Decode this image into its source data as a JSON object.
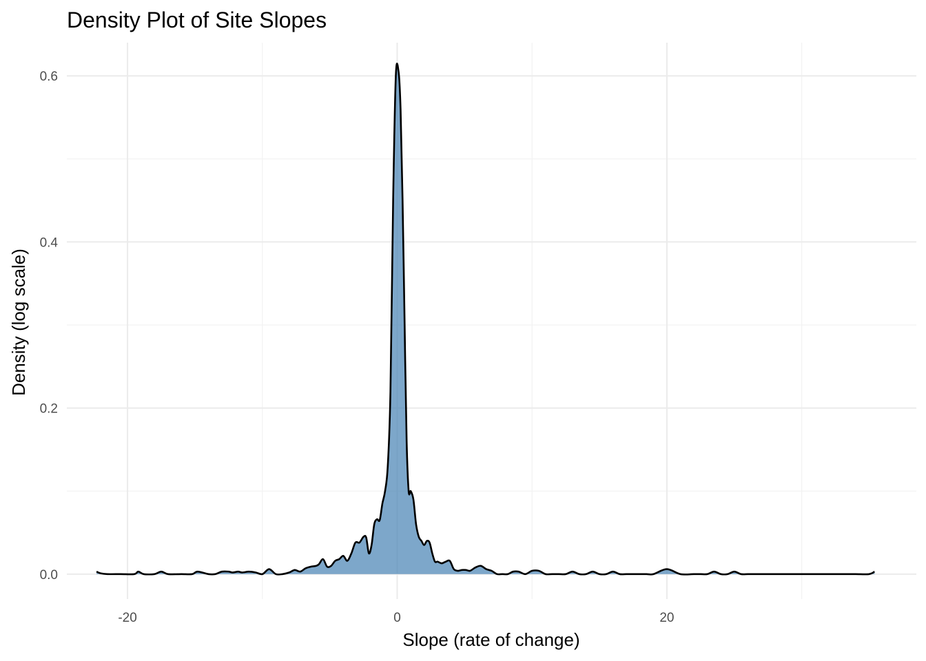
{
  "chart_data": {
    "type": "area",
    "title": "Density Plot of Site Slopes",
    "xlabel": "Slope (rate of change)",
    "ylabel": "Density (log scale)",
    "xlim": [
      -24.5,
      38.5
    ],
    "ylim": [
      -0.03,
      0.64
    ],
    "x_ticks": [
      -20,
      0,
      20
    ],
    "x_tick_labels": [
      "-20",
      "0",
      "20"
    ],
    "y_ticks": [
      0.0,
      0.2,
      0.4,
      0.6
    ],
    "y_tick_labels": [
      "0.0",
      "0.2",
      "0.4",
      "0.6"
    ],
    "grid": true,
    "fill_color": "#4682b4",
    "fill_opacity": 0.7,
    "line_color": "#000000",
    "series": [
      {
        "x": [
          -22.3,
          -22.0,
          -21.5,
          -20.5,
          -19.5,
          -19.2,
          -18.8,
          -18.0,
          -17.5,
          -17.0,
          -16.0,
          -15.2,
          -14.8,
          -14.0,
          -13.5,
          -13.0,
          -12.5,
          -12.2,
          -11.8,
          -11.5,
          -11.0,
          -10.5,
          -10.0,
          -9.5,
          -9.0,
          -8.5,
          -8.0,
          -7.6,
          -7.2,
          -6.8,
          -6.4,
          -6.0,
          -5.8,
          -5.5,
          -5.2,
          -4.9,
          -4.6,
          -4.3,
          -4.0,
          -3.7,
          -3.4,
          -3.1,
          -2.8,
          -2.5,
          -2.3,
          -2.1,
          -1.9,
          -1.7,
          -1.5,
          -1.3,
          -1.1,
          -0.9,
          -0.7,
          -0.5,
          -0.3,
          -0.1,
          0.1,
          0.25,
          0.4,
          0.55,
          0.7,
          0.85,
          1.0,
          1.2,
          1.4,
          1.6,
          1.8,
          2.0,
          2.2,
          2.4,
          2.6,
          2.8,
          3.0,
          3.3,
          3.6,
          3.9,
          4.2,
          4.5,
          4.8,
          5.1,
          5.4,
          5.8,
          6.2,
          6.6,
          7.0,
          7.4,
          7.8,
          8.2,
          8.6,
          9.0,
          9.5,
          10.0,
          10.5,
          11.0,
          11.5,
          12.0,
          12.5,
          13.0,
          13.5,
          14.0,
          14.5,
          15.0,
          15.5,
          16.0,
          16.5,
          17.0,
          17.5,
          18.0,
          18.5,
          19.0,
          20.0,
          21.0,
          22.0,
          22.5,
          23.0,
          23.5,
          24.0,
          24.5,
          25.0,
          25.5,
          26.0,
          26.5,
          27.0,
          27.5,
          28.0,
          29.0,
          30.0,
          31.0,
          32.0,
          33.0,
          34.0,
          35.0,
          35.4
        ],
        "values": [
          0.003,
          0.001,
          0.0,
          0.0,
          0.0,
          0.003,
          0.0,
          0.0,
          0.003,
          0.0,
          0.0,
          0.0,
          0.003,
          0.0,
          0.0,
          0.003,
          0.003,
          0.002,
          0.003,
          0.002,
          0.003,
          0.002,
          0.0,
          0.006,
          0.0,
          0.0,
          0.002,
          0.005,
          0.003,
          0.007,
          0.009,
          0.01,
          0.012,
          0.018,
          0.009,
          0.01,
          0.016,
          0.018,
          0.022,
          0.016,
          0.025,
          0.038,
          0.038,
          0.045,
          0.044,
          0.025,
          0.035,
          0.06,
          0.066,
          0.065,
          0.085,
          0.1,
          0.13,
          0.22,
          0.45,
          0.6,
          0.605,
          0.56,
          0.45,
          0.3,
          0.16,
          0.1,
          0.1,
          0.09,
          0.06,
          0.045,
          0.04,
          0.035,
          0.04,
          0.038,
          0.025,
          0.015,
          0.015,
          0.013,
          0.015,
          0.016,
          0.006,
          0.004,
          0.005,
          0.005,
          0.004,
          0.008,
          0.01,
          0.006,
          0.004,
          0.0,
          0.0,
          0.0,
          0.003,
          0.003,
          0.0,
          0.004,
          0.004,
          0.0,
          0.0,
          0.0,
          0.0,
          0.003,
          0.0,
          0.0,
          0.003,
          0.0,
          0.0,
          0.003,
          0.0,
          0.0,
          0.0,
          0.0,
          0.0,
          0.0,
          0.006,
          0.0,
          0.0,
          0.0,
          0.0,
          0.003,
          0.0,
          0.0,
          0.003,
          0.0,
          0.0,
          0.0,
          0.0,
          0.0,
          0.0,
          0.0,
          0.0,
          0.0,
          0.0,
          0.0,
          0.0,
          0.0,
          0.003
        ]
      }
    ]
  }
}
